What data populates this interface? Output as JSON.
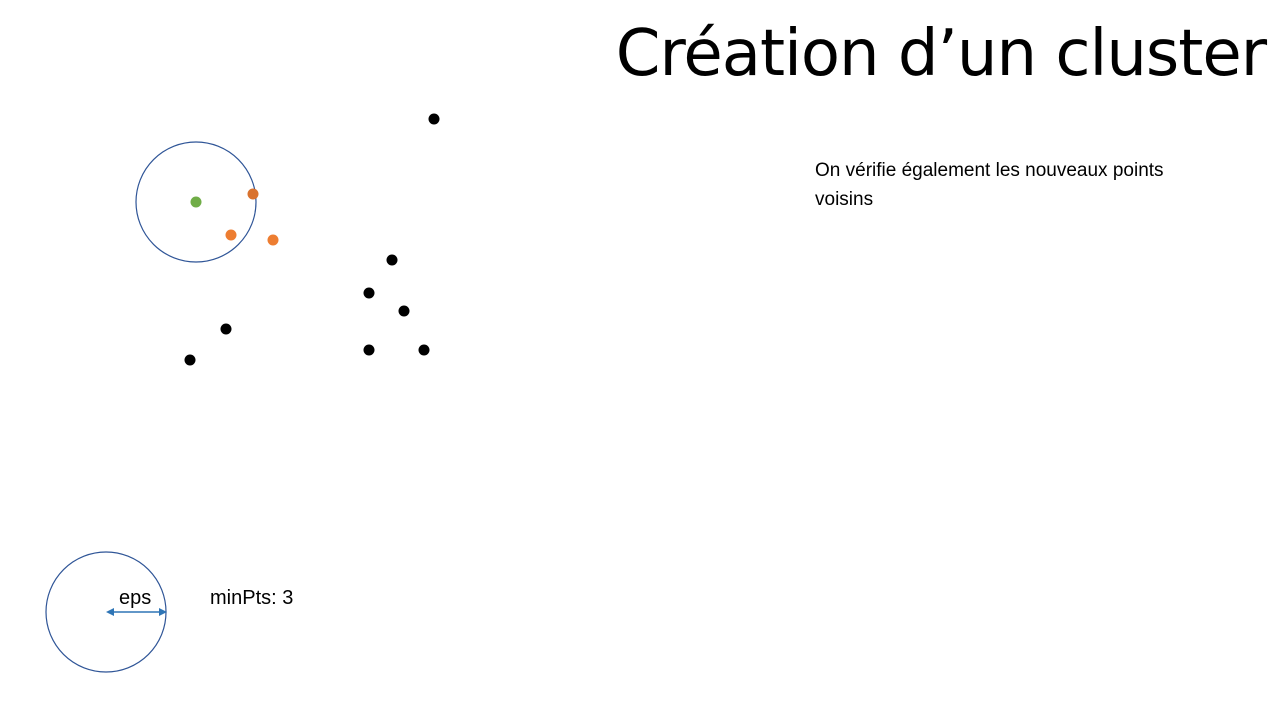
{
  "slide": {
    "title": "Création d’un cluster",
    "caption": "On vérifie également les nouveaux points voisins"
  },
  "legend": {
    "eps_label": "eps",
    "minpts_label": "minPts: 3"
  },
  "colors": {
    "core_point": "#70ad47",
    "neighbor_point": "#ed7d31",
    "neighbor_point_dark": "#d9722e",
    "unvisited_point": "#000000",
    "eps_circle": "#2f5597",
    "eps_arrow": "#2e75b6"
  }
}
